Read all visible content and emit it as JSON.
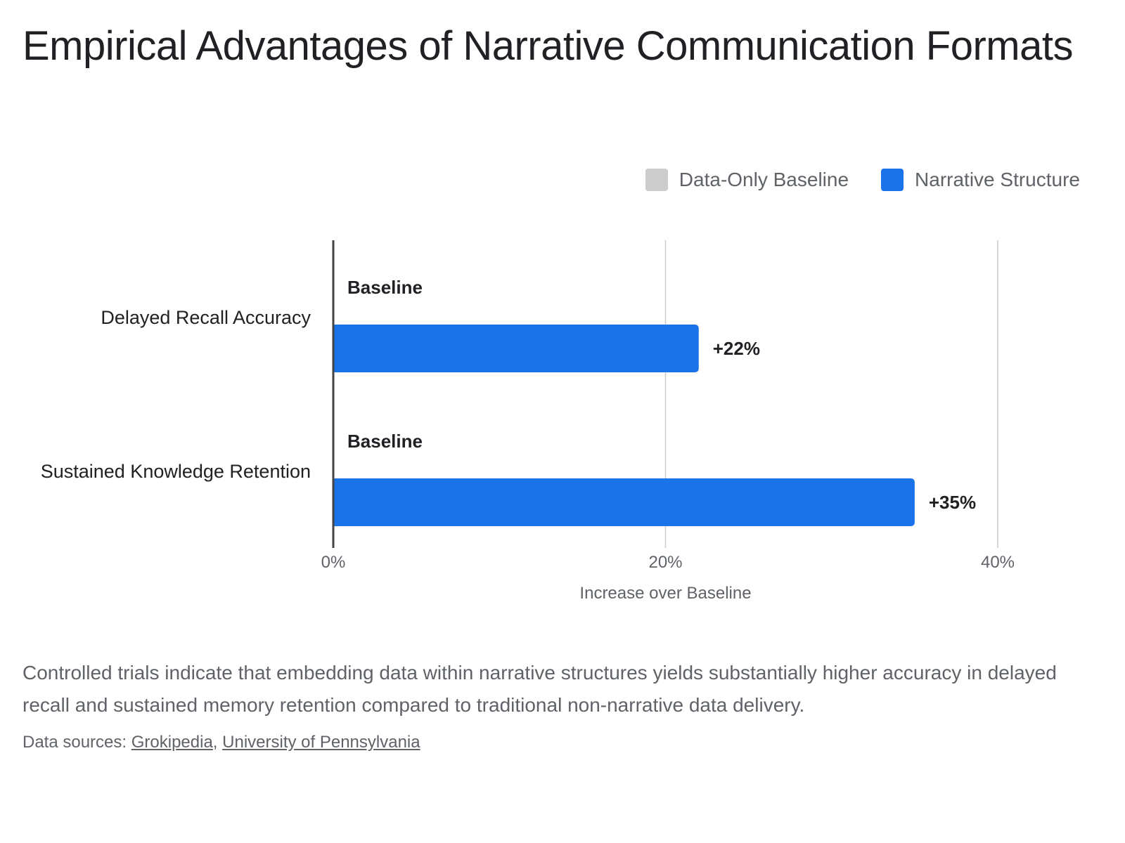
{
  "title": "Empirical Advantages of Narrative Communication Formats",
  "legend": {
    "items": [
      {
        "label": "Data-Only Baseline",
        "color": "#cccccc"
      },
      {
        "label": "Narrative Structure",
        "color": "#1a73e8"
      }
    ],
    "placement": "top-right"
  },
  "chart_data": {
    "type": "bar",
    "orientation": "horizontal",
    "categories": [
      "Delayed Recall Accuracy",
      "Sustained Knowledge Retention"
    ],
    "series": [
      {
        "name": "Data-Only Baseline",
        "values": [
          0,
          0
        ],
        "labels": [
          "Baseline",
          "Baseline"
        ],
        "color": "#cccccc"
      },
      {
        "name": "Narrative Structure",
        "values": [
          22,
          35
        ],
        "labels": [
          "+22%",
          "+35%"
        ],
        "color": "#1a73e8"
      }
    ],
    "xlabel": "Increase over Baseline",
    "ylabel": "",
    "xlim": [
      0,
      40
    ],
    "ticks": [
      0,
      20,
      40
    ],
    "tick_labels": [
      "0%",
      "20%",
      "40%"
    ],
    "grid": true
  },
  "caption": "Controlled trials indicate that embedding data within narrative structures yields substantially higher accuracy in delayed recall and sustained memory retention compared to traditional non-narrative data delivery.",
  "sources": {
    "prefix": "Data sources: ",
    "links": [
      "Grokipedia",
      "University of Pennsylvania"
    ],
    "separator": ", "
  }
}
